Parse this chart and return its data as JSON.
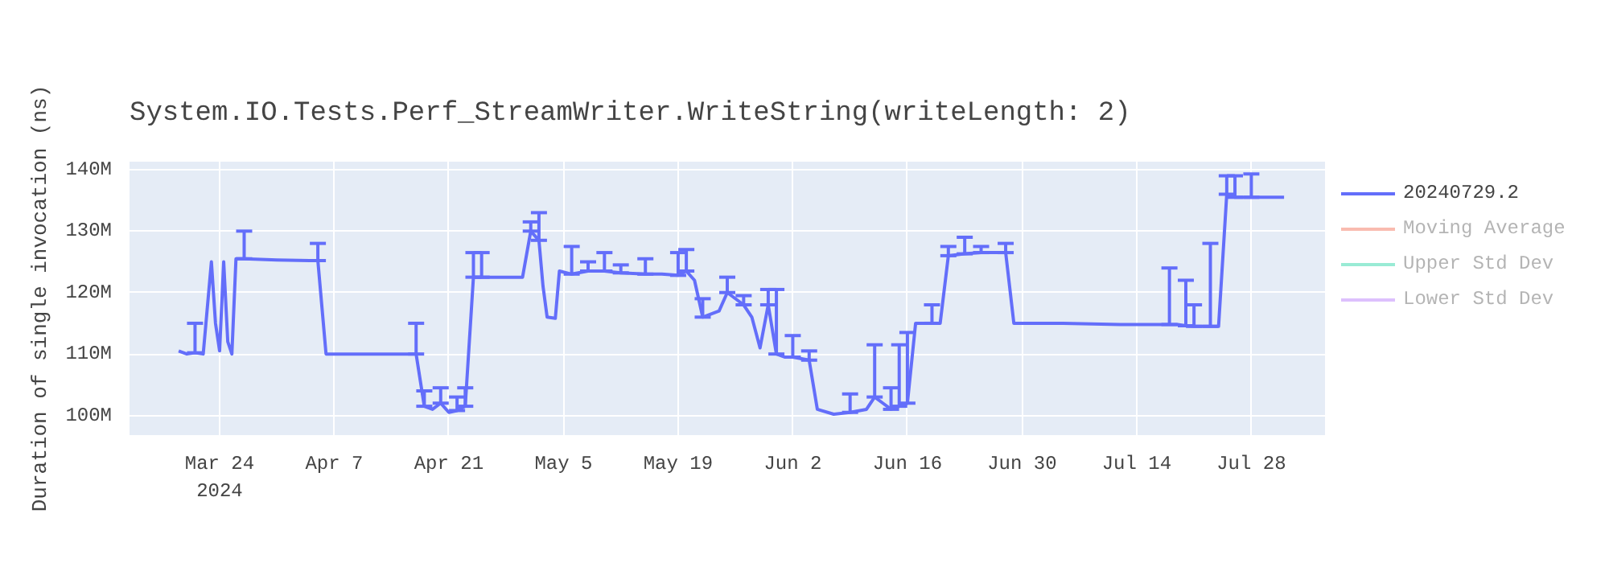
{
  "chart_data": {
    "type": "line",
    "title": "System.IO.Tests.Perf_StreamWriter.WriteString(writeLength: 2)",
    "ylabel": "Duration of single invocation (ns)",
    "x": [
      "2024-03-19",
      "2024-03-20",
      "2024-03-21",
      "2024-03-22",
      "2024-03-23",
      "2024-03-23T12:00",
      "2024-03-24",
      "2024-03-24T12:00",
      "2024-03-25",
      "2024-03-25T12:00",
      "2024-03-26",
      "2024-03-27",
      "2024-03-31",
      "2024-04-04",
      "2024-04-05",
      "2024-04-06",
      "2024-04-12",
      "2024-04-17",
      "2024-04-18",
      "2024-04-19",
      "2024-04-20",
      "2024-04-21",
      "2024-04-22",
      "2024-04-23",
      "2024-04-24",
      "2024-04-25",
      "2024-04-27",
      "2024-04-30",
      "2024-05-01",
      "2024-05-02",
      "2024-05-02T12:00",
      "2024-05-03",
      "2024-05-04",
      "2024-05-04T12:00",
      "2024-05-06",
      "2024-05-08",
      "2024-05-10",
      "2024-05-12",
      "2024-05-15",
      "2024-05-17",
      "2024-05-19",
      "2024-05-20",
      "2024-05-21",
      "2024-05-22",
      "2024-05-24",
      "2024-05-25",
      "2024-05-27",
      "2024-05-28",
      "2024-05-29",
      "2024-05-30",
      "2024-05-31",
      "2024-06-01",
      "2024-06-02",
      "2024-06-04",
      "2024-06-05",
      "2024-06-07",
      "2024-06-09",
      "2024-06-11",
      "2024-06-12",
      "2024-06-13",
      "2024-06-14",
      "2024-06-15",
      "2024-06-16",
      "2024-06-17",
      "2024-06-19",
      "2024-06-20",
      "2024-06-21",
      "2024-06-23",
      "2024-06-25",
      "2024-06-28",
      "2024-06-29",
      "2024-07-05",
      "2024-07-12",
      "2024-07-18",
      "2024-07-19",
      "2024-07-20",
      "2024-07-21",
      "2024-07-23",
      "2024-07-24",
      "2024-07-25",
      "2024-07-26",
      "2024-07-28",
      "2024-08-01"
    ],
    "series": [
      {
        "name": "20240729.2",
        "color": "#636efa",
        "values": [
          110500000,
          110000000,
          110200000,
          110000000,
          125000000,
          115000000,
          110500000,
          125000000,
          112000000,
          110000000,
          125500000,
          125500000,
          125300000,
          125200000,
          125200000,
          110000000,
          110000000,
          110000000,
          101500000,
          101000000,
          102000000,
          100500000,
          100800000,
          101500000,
          122500000,
          122500000,
          122500000,
          122500000,
          130000000,
          128500000,
          121000000,
          116000000,
          115800000,
          123500000,
          123000000,
          123500000,
          123500000,
          123200000,
          123000000,
          123000000,
          122800000,
          123500000,
          122000000,
          116000000,
          117000000,
          120000000,
          118000000,
          116000000,
          111000000,
          118000000,
          110000000,
          109500000,
          109500000,
          109000000,
          101000000,
          100200000,
          100500000,
          101000000,
          103000000,
          102000000,
          101000000,
          101500000,
          102000000,
          115000000,
          115000000,
          115000000,
          126000000,
          126300000,
          126500000,
          126500000,
          115000000,
          115000000,
          114800000,
          114800000,
          114800000,
          114600000,
          114500000,
          114500000,
          114500000,
          136000000,
          135500000,
          135500000,
          135500000
        ],
        "errors": [
          null,
          null,
          [
            110200000,
            115000000
          ],
          null,
          null,
          null,
          null,
          null,
          null,
          null,
          null,
          [
            125500000,
            130000000
          ],
          null,
          null,
          [
            125200000,
            128000000
          ],
          null,
          null,
          [
            110000000,
            115000000
          ],
          [
            101500000,
            104000000
          ],
          null,
          [
            102000000,
            104500000
          ],
          null,
          [
            100800000,
            103000000
          ],
          [
            101500000,
            104500000
          ],
          [
            122500000,
            126500000
          ],
          [
            122500000,
            126500000
          ],
          null,
          null,
          [
            130000000,
            131500000
          ],
          [
            128500000,
            133000000
          ],
          null,
          null,
          null,
          null,
          [
            123000000,
            127500000
          ],
          [
            123500000,
            125000000
          ],
          [
            123500000,
            126500000
          ],
          [
            123200000,
            124500000
          ],
          [
            123000000,
            125500000
          ],
          null,
          [
            122800000,
            126500000
          ],
          [
            123500000,
            127000000
          ],
          null,
          [
            116000000,
            119000000
          ],
          null,
          [
            120000000,
            122500000
          ],
          [
            118000000,
            119500000
          ],
          null,
          null,
          [
            118000000,
            120500000
          ],
          [
            110000000,
            120500000
          ],
          null,
          [
            109500000,
            113000000
          ],
          [
            109000000,
            110500000
          ],
          null,
          null,
          [
            100500000,
            103500000
          ],
          null,
          [
            103000000,
            111500000
          ],
          null,
          [
            101000000,
            104500000
          ],
          [
            101500000,
            111500000
          ],
          [
            102000000,
            113500000
          ],
          null,
          [
            115000000,
            118000000
          ],
          null,
          [
            126000000,
            127500000
          ],
          [
            126300000,
            129000000
          ],
          [
            126500000,
            127500000
          ],
          [
            126500000,
            128000000
          ],
          null,
          null,
          null,
          [
            114800000,
            124000000
          ],
          null,
          [
            114600000,
            122000000
          ],
          [
            114500000,
            118000000
          ],
          [
            114500000,
            128000000
          ],
          null,
          [
            136000000,
            139000000
          ],
          [
            135500000,
            139000000
          ],
          [
            135500000,
            139300000
          ],
          null
        ]
      },
      {
        "name": "Moving Average",
        "color": "#ef553b",
        "values": [
          null,
          null,
          null,
          null,
          null,
          null,
          null,
          null,
          null,
          null,
          null,
          null,
          null,
          null,
          null,
          null,
          null,
          null,
          null,
          null,
          null,
          null,
          null,
          null,
          null,
          null,
          null,
          null,
          null,
          null,
          null,
          null,
          null,
          null,
          null,
          null,
          null,
          null,
          null,
          null,
          null,
          null,
          null,
          null,
          null,
          null,
          null,
          null,
          null,
          null,
          null,
          null,
          null,
          null,
          null,
          null,
          null,
          null,
          null,
          null,
          null,
          null,
          null,
          null,
          null,
          null,
          null,
          null,
          null,
          null,
          null,
          null,
          null,
          null,
          null,
          null,
          null,
          null,
          null,
          null,
          null,
          null,
          null
        ]
      },
      {
        "name": "Upper Std Dev",
        "color": "#00cc96",
        "values": [
          null,
          null,
          null,
          null,
          null,
          null,
          null,
          null,
          null,
          null,
          null,
          null,
          null,
          null,
          null,
          null,
          null,
          null,
          null,
          null,
          null,
          null,
          null,
          null,
          null,
          null,
          null,
          null,
          null,
          null,
          null,
          null,
          null,
          null,
          null,
          null,
          null,
          null,
          null,
          null,
          null,
          null,
          null,
          null,
          null,
          null,
          null,
          null,
          null,
          null,
          null,
          null,
          null,
          null,
          null,
          null,
          null,
          null,
          null,
          null,
          null,
          null,
          null,
          null,
          null,
          null,
          null,
          null,
          null,
          null,
          null,
          null,
          null,
          null,
          null,
          null,
          null,
          null,
          null,
          null,
          null,
          null,
          null
        ]
      },
      {
        "name": "Lower Std Dev",
        "color": "#ab63fa",
        "values": [
          null,
          null,
          null,
          null,
          null,
          null,
          null,
          null,
          null,
          null,
          null,
          null,
          null,
          null,
          null,
          null,
          null,
          null,
          null,
          null,
          null,
          null,
          null,
          null,
          null,
          null,
          null,
          null,
          null,
          null,
          null,
          null,
          null,
          null,
          null,
          null,
          null,
          null,
          null,
          null,
          null,
          null,
          null,
          null,
          null,
          null,
          null,
          null,
          null,
          null,
          null,
          null,
          null,
          null,
          null,
          null,
          null,
          null,
          null,
          null,
          null,
          null,
          null,
          null,
          null,
          null,
          null,
          null,
          null,
          null,
          null,
          null,
          null,
          null,
          null,
          null,
          null,
          null,
          null,
          null,
          null,
          null,
          null
        ]
      }
    ],
    "xlim": [
      "2024-03-13",
      "2024-08-06"
    ],
    "xticks": [
      {
        "value": "2024-03-24",
        "label": "Mar 24\n2024"
      },
      {
        "value": "2024-04-07",
        "label": "Apr 7"
      },
      {
        "value": "2024-04-21",
        "label": "Apr 21"
      },
      {
        "value": "2024-05-05",
        "label": "May 5"
      },
      {
        "value": "2024-05-19",
        "label": "May 19"
      },
      {
        "value": "2024-06-02",
        "label": "Jun 2"
      },
      {
        "value": "2024-06-16",
        "label": "Jun 16"
      },
      {
        "value": "2024-06-30",
        "label": "Jun 30"
      },
      {
        "value": "2024-07-14",
        "label": "Jul 14"
      },
      {
        "value": "2024-07-28",
        "label": "Jul 28"
      }
    ],
    "ylim": [
      96800000,
      141300000
    ],
    "yticks": [
      {
        "value": 100000000,
        "label": "100M"
      },
      {
        "value": 110000000,
        "label": "110M"
      },
      {
        "value": 120000000,
        "label": "120M"
      },
      {
        "value": 130000000,
        "label": "130M"
      },
      {
        "value": 140000000,
        "label": "140M"
      }
    ],
    "grid": true,
    "legend": "top right"
  }
}
